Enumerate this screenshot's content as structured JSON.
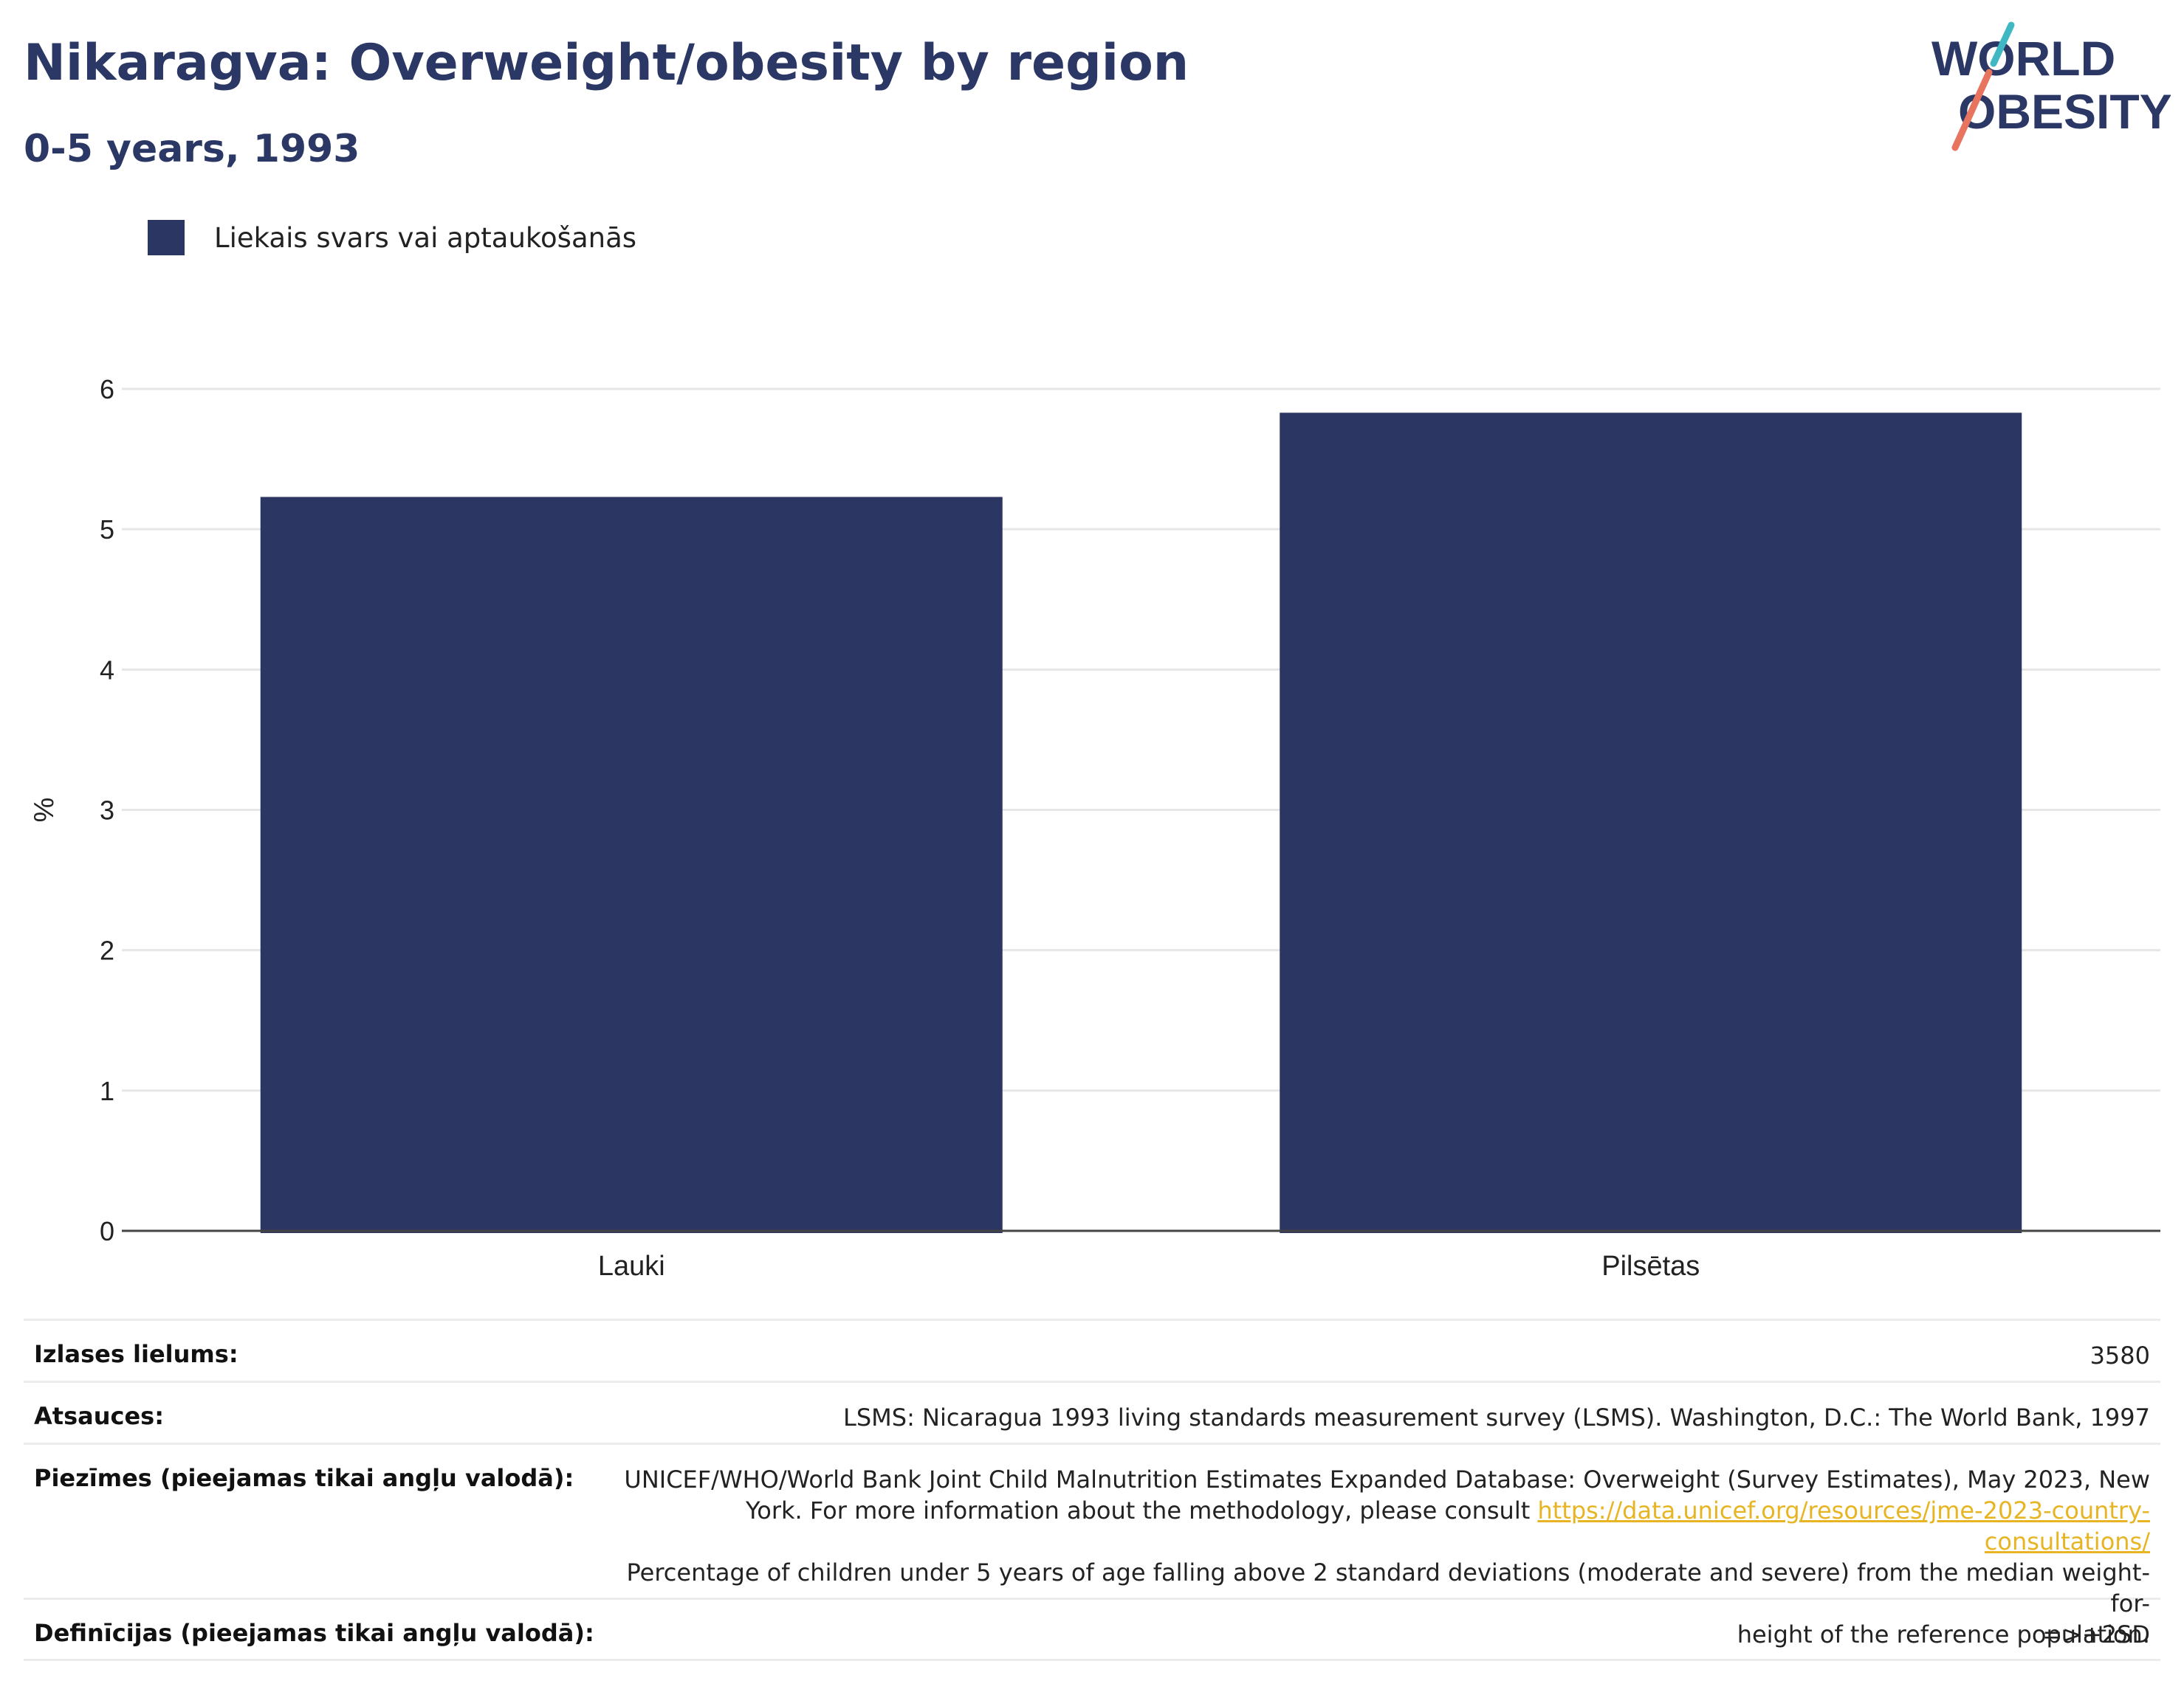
{
  "header": {
    "title": "Nikaragva: Overweight/obesity by region",
    "subtitle": "0-5 years, 1993"
  },
  "logo": {
    "line1": "WORLD",
    "line2": "OBESITY",
    "colors": {
      "text": "#2b3764",
      "slash_top": "#3fb8c4",
      "slash_bottom": "#e8735f"
    }
  },
  "legend": {
    "label": "Liekais svars vai aptaukošanās",
    "color": "#2b3663"
  },
  "chart_data": {
    "type": "bar",
    "categories": [
      "Lauki",
      "Pilsētas"
    ],
    "series": [
      {
        "name": "Liekais svars vai aptaukošanās",
        "values": [
          5.23,
          5.83
        ],
        "color": "#2b3663"
      }
    ],
    "ylabel": "%",
    "xlabel": "",
    "ylim": [
      0,
      6
    ],
    "yticks": [
      "0",
      "1",
      "2",
      "3",
      "4",
      "5",
      "6"
    ],
    "grid": true,
    "legend_position": "top-left"
  },
  "info": {
    "sample": {
      "label": "Izlases lielums:",
      "value": "3580"
    },
    "refs": {
      "label": "Atsauces:",
      "value": "LSMS: Nicaragua 1993 living standards measurement survey (LSMS). Washington, D.C.: The World Bank, 1997"
    },
    "notes": {
      "label": "Piezīmes (pieejamas tikai angļu valodā):",
      "line1": "UNICEF/WHO/World Bank Joint Child Malnutrition Estimates Expanded Database: Overweight (Survey Estimates), May 2023, New",
      "line2": "York. For more information about the methodology, please consult ",
      "link": "https://data.unicef.org/resources/jme-2023-country-consultations/",
      "line3": "Percentage of children under 5 years of age falling above 2 standard deviations (moderate and severe) from the median weight-for-",
      "line4": "height of the reference population."
    },
    "defs": {
      "label": "Definīcijas (pieejamas tikai angļu valodā):",
      "value": "=>+2SD"
    }
  }
}
